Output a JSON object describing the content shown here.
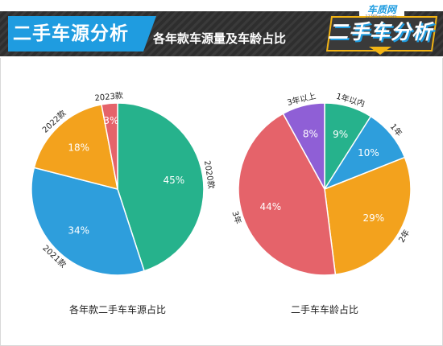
{
  "header": {
    "section_title": "二手车源分析",
    "page_title": "各年款车源量及车龄占比",
    "logo_text": "二手车分析",
    "logo_brand": "车质网",
    "logo_url": "12365auto.com"
  },
  "colors": {
    "green": "#26b28c",
    "blue": "#2e9edc",
    "orange": "#f3a21d",
    "red": "#e5636a",
    "purple": "#8f5fd6",
    "header_blue": "#1f9ce0",
    "header_dark": "#2e2e2e",
    "logo_gold": "#f3b414"
  },
  "chart_data": [
    {
      "type": "pie",
      "title": "各年款二手车车源占比",
      "categories": [
        "2020款",
        "2021款",
        "2022款",
        "2023款"
      ],
      "values": [
        45,
        34,
        18,
        3
      ],
      "value_labels": [
        "45%",
        "34%",
        "18%",
        "3%"
      ],
      "colors": [
        "#26b28c",
        "#2e9edc",
        "#f3a21d",
        "#e5636a"
      ],
      "start": "12 o'clock",
      "direction": "clockwise"
    },
    {
      "type": "pie",
      "title": "二手车车龄占比",
      "categories": [
        "1年以内",
        "1年",
        "2年",
        "3年",
        "3年以上"
      ],
      "values": [
        9,
        10,
        29,
        44,
        8
      ],
      "value_labels": [
        "9%",
        "10%",
        "29%",
        "44%",
        "8%"
      ],
      "colors": [
        "#26b28c",
        "#2e9edc",
        "#f3a21d",
        "#e5636a",
        "#8f5fd6"
      ],
      "start": "12 o'clock",
      "direction": "clockwise"
    }
  ]
}
